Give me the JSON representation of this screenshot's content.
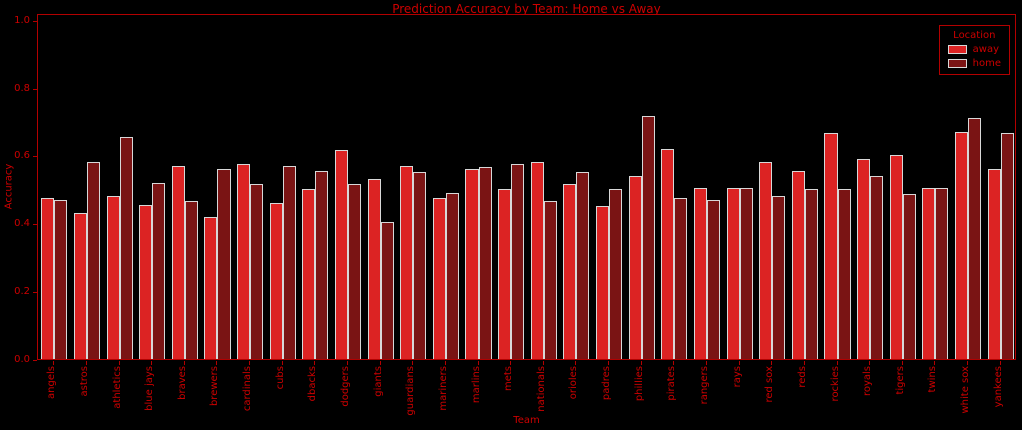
{
  "title": "Prediction Accuracy by Team: Home vs Away",
  "chart_data": {
    "type": "bar",
    "title": "Prediction Accuracy by Team: Home vs Away",
    "xlabel": "Team",
    "ylabel": "Accuracy",
    "ylim": [
      0,
      1.02
    ],
    "yticks": [
      0.0,
      0.2,
      0.4,
      0.6,
      0.8,
      1.0
    ],
    "grid": false,
    "background_color": "#000000",
    "text_color": "#cc0000",
    "spine_color": "#b30000",
    "bar_edge_color": "#d8d8d8",
    "legend": {
      "title": "Location",
      "position": "upper right"
    },
    "categories": [
      "angels",
      "astros",
      "athletics",
      "blue jays",
      "braves",
      "brewers",
      "cardinals",
      "cubs",
      "dbacks",
      "dodgers",
      "giants",
      "guardians",
      "mariners",
      "marlins",
      "mets",
      "nationals",
      "orioles",
      "padres",
      "phillies",
      "pirates",
      "rangers",
      "rays",
      "red sox",
      "reds",
      "rockies",
      "royals",
      "tigers",
      "twins",
      "white sox",
      "yankees"
    ],
    "series": [
      {
        "name": "away",
        "color": "#dc2323",
        "values": [
          0.475,
          0.43,
          0.48,
          0.455,
          0.57,
          0.42,
          0.575,
          0.46,
          0.5,
          0.615,
          0.53,
          0.57,
          0.475,
          0.56,
          0.5,
          0.58,
          0.515,
          0.45,
          0.54,
          0.62,
          0.505,
          0.505,
          0.58,
          0.555,
          0.665,
          0.59,
          0.6,
          0.505,
          0.67,
          0.56
        ]
      },
      {
        "name": "home",
        "color": "#7a1414",
        "values": [
          0.47,
          0.58,
          0.655,
          0.52,
          0.465,
          0.56,
          0.515,
          0.57,
          0.555,
          0.515,
          0.405,
          0.55,
          0.49,
          0.565,
          0.575,
          0.465,
          0.55,
          0.5,
          0.715,
          0.475,
          0.47,
          0.505,
          0.48,
          0.5,
          0.5,
          0.54,
          0.485,
          0.505,
          0.71,
          0.665
        ]
      }
    ]
  }
}
